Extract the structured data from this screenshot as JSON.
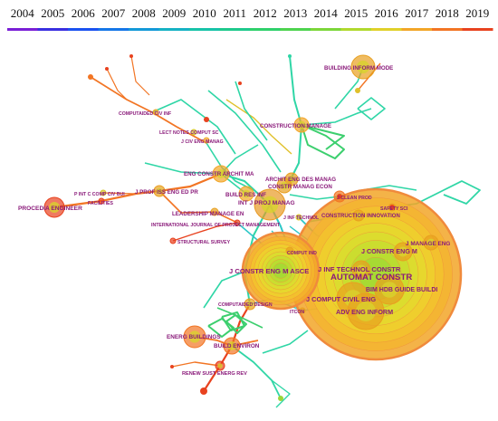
{
  "timeline": {
    "years": [
      "2004",
      "2005",
      "2006",
      "2007",
      "2008",
      "2009",
      "2010",
      "2011",
      "2012",
      "2013",
      "2014",
      "2015",
      "2016",
      "2017",
      "2018",
      "2019"
    ],
    "colors": [
      "#7a1fd6",
      "#3a2fe0",
      "#1b52f0",
      "#1677e8",
      "#1499d8",
      "#16b2c4",
      "#17c3a8",
      "#1ec98c",
      "#2fd06b",
      "#4ed34f",
      "#7cd63a",
      "#b0d92e",
      "#e0d02a",
      "#f2a628",
      "#f27524",
      "#e8421f"
    ]
  },
  "network": {
    "nodes": [
      {
        "id": "building-inform-mode",
        "label": "BUILDING INFORM MODE"
      },
      {
        "id": "computaided-civ-inf",
        "label": "COMPUTAIDED CIV INF"
      },
      {
        "id": "lect-notes-comput-sc",
        "label": "LECT NOTES COMPUT SC"
      },
      {
        "id": "j-civ-eng-manag",
        "label": "J CIV ENG MANAG"
      },
      {
        "id": "construction-manage",
        "label": "CONSTRUCTION MANAGE"
      },
      {
        "id": "eng-constr-archit-ma",
        "label": "ENG CONSTR ARCHIT MA"
      },
      {
        "id": "archit-eng-des-manag",
        "label": "ARCHIT ENG DES MANAG"
      },
      {
        "id": "constr-manag-econ",
        "label": "CONSTR MANAG ECON"
      },
      {
        "id": "j-prof-iss-eng-ed-pr",
        "label": "J PROF ISS ENG ED PR"
      },
      {
        "id": "p-int-c-comp-civ-bui",
        "label": "P INT C COMP CIV BUI"
      },
      {
        "id": "facilities",
        "label": "FACILITIES"
      },
      {
        "id": "build-res-inf",
        "label": "BUILD RES INF"
      },
      {
        "id": "j-clean-prod",
        "label": "J CLEAN PROD"
      },
      {
        "id": "safety-sci",
        "label": "SAFETY SCI"
      },
      {
        "id": "procedia-engineer",
        "label": "PROCEDIA ENGINEER"
      },
      {
        "id": "int-j-proj-manag",
        "label": "INT J PROJ MANAG"
      },
      {
        "id": "construction-innovation",
        "label": "CONSTRUCTION INNOVATION"
      },
      {
        "id": "leadership-manage-en",
        "label": "LEADERSHIP MANAGE EN"
      },
      {
        "id": "j-inf-technol",
        "label": "J INF TECHNOL"
      },
      {
        "id": "international-journal-of-project-management",
        "label": "INTERNATIONAL JOURNAL OF PROJECT MANAGEMENT"
      },
      {
        "id": "structural-survey",
        "label": "STRUCTURAL SURVEY"
      },
      {
        "id": "j-constr-eng-m",
        "label": "J CONSTR ENG M"
      },
      {
        "id": "j-manage-eng",
        "label": "J MANAGE ENG"
      },
      {
        "id": "comput-ind",
        "label": "COMPUT IND"
      },
      {
        "id": "j-constr-eng-m-asce",
        "label": "J CONSTR ENG M ASCE"
      },
      {
        "id": "j-inf-technol-constr",
        "label": "J INF TECHNOL CONSTR"
      },
      {
        "id": "automat-constr",
        "label": "AUTOMAT CONSTR"
      },
      {
        "id": "bim-hdb-guide-buildi",
        "label": "BIM HDB GUIDE BUILDI"
      },
      {
        "id": "j-comput-civil-eng",
        "label": "J COMPUT CIVIL ENG"
      },
      {
        "id": "computaided-design",
        "label": "COMPUTAIDED DESIGN"
      },
      {
        "id": "itcon",
        "label": "ITCON"
      },
      {
        "id": "adv-eng-inform",
        "label": "ADV ENG INFORM"
      },
      {
        "id": "energ-buildings",
        "label": "ENERG BUILDINGS"
      },
      {
        "id": "build-environ",
        "label": "BUILD ENVIRON"
      },
      {
        "id": "renew-sust-energ-rev",
        "label": "RENEW SUST ENERG REV"
      }
    ]
  }
}
